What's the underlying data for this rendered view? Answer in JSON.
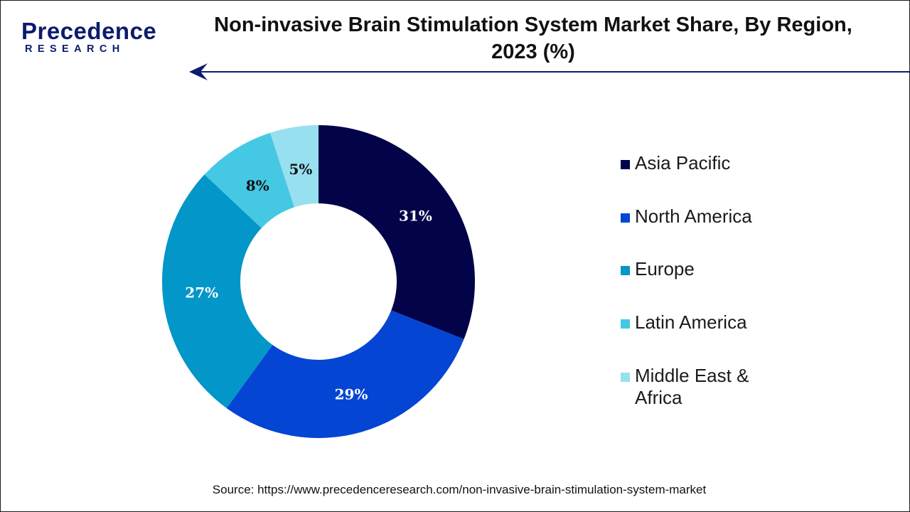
{
  "brand": {
    "name": "Precedence",
    "sub": "RESEARCH"
  },
  "title_line1": "Non-invasive Brain Stimulation System Market Share, By Region,",
  "title_line2": "2023 (%)",
  "source": "Source: https://www.precedenceresearch.com/non-invasive-brain-stimulation-system-market",
  "chart_data": {
    "type": "pie",
    "donut": true,
    "title": "Non-invasive Brain Stimulation System Market Share, By Region, 2023 (%)",
    "legend_position": "right",
    "series": [
      {
        "name": "Asia Pacific",
        "value": 31,
        "label": "31%",
        "color": "#03034a",
        "label_color": "#ffffff"
      },
      {
        "name": "North America",
        "value": 29,
        "label": "29%",
        "color": "#0545d4",
        "label_color": "#ffffff"
      },
      {
        "name": "Europe",
        "value": 27,
        "label": "27%",
        "color": "#0396c8",
        "label_color": "#ffffff"
      },
      {
        "name": "Latin America",
        "value": 8,
        "label": "8%",
        "color": "#45c8e4",
        "label_color": "#111111"
      },
      {
        "name": "Middle East & Africa",
        "value": 5,
        "label": "5%",
        "color": "#97e0ef",
        "label_color": "#111111"
      }
    ]
  }
}
